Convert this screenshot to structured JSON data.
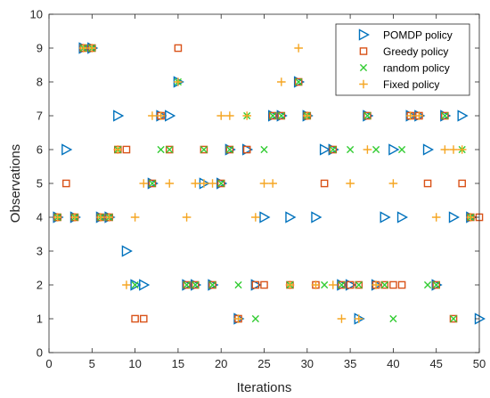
{
  "chart_data": {
    "type": "scatter",
    "title": "",
    "xlabel": "Iterations",
    "ylabel": "Observations",
    "xlim": [
      0,
      50
    ],
    "ylim": [
      0,
      10
    ],
    "xticks": [
      0,
      5,
      10,
      15,
      20,
      25,
      30,
      35,
      40,
      45,
      50
    ],
    "yticks": [
      0,
      1,
      2,
      3,
      4,
      5,
      6,
      7,
      8,
      9,
      10
    ],
    "grid": false,
    "legend_position": "top-right",
    "series": [
      {
        "name": "POMDP policy",
        "marker": "triangle-right",
        "color": "#0072BD",
        "points": [
          [
            1,
            4
          ],
          [
            2,
            6
          ],
          [
            3,
            4
          ],
          [
            4,
            9
          ],
          [
            5,
            9
          ],
          [
            6,
            4
          ],
          [
            7,
            4
          ],
          [
            8,
            7
          ],
          [
            9,
            3
          ],
          [
            10,
            2
          ],
          [
            11,
            2
          ],
          [
            12,
            5
          ],
          [
            13,
            7
          ],
          [
            14,
            7
          ],
          [
            15,
            8
          ],
          [
            16,
            2
          ],
          [
            17,
            2
          ],
          [
            18,
            5
          ],
          [
            19,
            2
          ],
          [
            20,
            5
          ],
          [
            21,
            6
          ],
          [
            22,
            1
          ],
          [
            23,
            6
          ],
          [
            24,
            2
          ],
          [
            25,
            4
          ],
          [
            26,
            7
          ],
          [
            27,
            7
          ],
          [
            28,
            4
          ],
          [
            29,
            8
          ],
          [
            30,
            7
          ],
          [
            31,
            4
          ],
          [
            32,
            6
          ],
          [
            33,
            6
          ],
          [
            34,
            2
          ],
          [
            35,
            2
          ],
          [
            36,
            1
          ],
          [
            37,
            7
          ],
          [
            38,
            2
          ],
          [
            39,
            4
          ],
          [
            40,
            6
          ],
          [
            41,
            4
          ],
          [
            42,
            7
          ],
          [
            43,
            7
          ],
          [
            44,
            6
          ],
          [
            45,
            2
          ],
          [
            46,
            7
          ],
          [
            47,
            4
          ],
          [
            48,
            7
          ],
          [
            49,
            4
          ],
          [
            50,
            1
          ]
        ]
      },
      {
        "name": "Greedy policy",
        "marker": "square",
        "color": "#D95319",
        "points": [
          [
            1,
            4
          ],
          [
            2,
            5
          ],
          [
            3,
            4
          ],
          [
            4,
            9
          ],
          [
            5,
            9
          ],
          [
            6,
            4
          ],
          [
            7,
            4
          ],
          [
            8,
            6
          ],
          [
            9,
            6
          ],
          [
            10,
            1
          ],
          [
            11,
            1
          ],
          [
            12,
            5
          ],
          [
            13,
            7
          ],
          [
            14,
            6
          ],
          [
            15,
            9
          ],
          [
            16,
            2
          ],
          [
            17,
            2
          ],
          [
            18,
            6
          ],
          [
            19,
            2
          ],
          [
            20,
            5
          ],
          [
            21,
            6
          ],
          [
            22,
            1
          ],
          [
            23,
            6
          ],
          [
            24,
            2
          ],
          [
            25,
            2
          ],
          [
            26,
            7
          ],
          [
            27,
            7
          ],
          [
            28,
            2
          ],
          [
            29,
            8
          ],
          [
            30,
            7
          ],
          [
            31,
            2
          ],
          [
            32,
            5
          ],
          [
            33,
            6
          ],
          [
            34,
            2
          ],
          [
            35,
            2
          ],
          [
            36,
            2
          ],
          [
            37,
            7
          ],
          [
            38,
            2
          ],
          [
            39,
            2
          ],
          [
            40,
            2
          ],
          [
            41,
            2
          ],
          [
            42,
            7
          ],
          [
            43,
            7
          ],
          [
            44,
            5
          ],
          [
            45,
            2
          ],
          [
            46,
            7
          ],
          [
            47,
            1
          ],
          [
            48,
            5
          ],
          [
            49,
            4
          ],
          [
            50,
            4
          ]
        ]
      },
      {
        "name": "random policy",
        "marker": "x",
        "color": "#33CC33",
        "points": [
          [
            1,
            4
          ],
          [
            3,
            4
          ],
          [
            4,
            9
          ],
          [
            5,
            9
          ],
          [
            6,
            4
          ],
          [
            7,
            4
          ],
          [
            8,
            6
          ],
          [
            10,
            2
          ],
          [
            12,
            5
          ],
          [
            13,
            6
          ],
          [
            14,
            6
          ],
          [
            15,
            8
          ],
          [
            16,
            2
          ],
          [
            17,
            2
          ],
          [
            18,
            6
          ],
          [
            19,
            2
          ],
          [
            20,
            5
          ],
          [
            21,
            6
          ],
          [
            22,
            2
          ],
          [
            23,
            7
          ],
          [
            24,
            1
          ],
          [
            25,
            6
          ],
          [
            26,
            7
          ],
          [
            27,
            7
          ],
          [
            28,
            2
          ],
          [
            29,
            8
          ],
          [
            30,
            7
          ],
          [
            32,
            2
          ],
          [
            33,
            6
          ],
          [
            34,
            2
          ],
          [
            35,
            6
          ],
          [
            36,
            2
          ],
          [
            37,
            7
          ],
          [
            38,
            6
          ],
          [
            39,
            2
          ],
          [
            40,
            1
          ],
          [
            41,
            6
          ],
          [
            44,
            2
          ],
          [
            45,
            2
          ],
          [
            46,
            7
          ],
          [
            47,
            1
          ],
          [
            48,
            6
          ],
          [
            49,
            4
          ]
        ]
      },
      {
        "name": "Fixed policy",
        "marker": "plus",
        "color": "#F5A623",
        "points": [
          [
            1,
            4
          ],
          [
            3,
            4
          ],
          [
            4,
            9
          ],
          [
            5,
            9
          ],
          [
            6,
            4
          ],
          [
            7,
            4
          ],
          [
            8,
            6
          ],
          [
            9,
            2
          ],
          [
            10,
            4
          ],
          [
            11,
            5
          ],
          [
            12,
            7
          ],
          [
            13,
            7
          ],
          [
            14,
            5
          ],
          [
            15,
            8
          ],
          [
            16,
            4
          ],
          [
            17,
            5
          ],
          [
            18,
            5
          ],
          [
            19,
            5
          ],
          [
            20,
            7
          ],
          [
            21,
            7
          ],
          [
            22,
            1
          ],
          [
            23,
            7
          ],
          [
            24,
            4
          ],
          [
            25,
            5
          ],
          [
            26,
            5
          ],
          [
            27,
            8
          ],
          [
            28,
            2
          ],
          [
            29,
            9
          ],
          [
            30,
            7
          ],
          [
            31,
            2
          ],
          [
            33,
            2
          ],
          [
            34,
            1
          ],
          [
            35,
            5
          ],
          [
            36,
            1
          ],
          [
            37,
            6
          ],
          [
            38,
            2
          ],
          [
            40,
            5
          ],
          [
            42,
            7
          ],
          [
            43,
            7
          ],
          [
            45,
            4
          ],
          [
            46,
            6
          ],
          [
            47,
            6
          ],
          [
            48,
            6
          ],
          [
            49,
            4
          ]
        ]
      }
    ]
  }
}
